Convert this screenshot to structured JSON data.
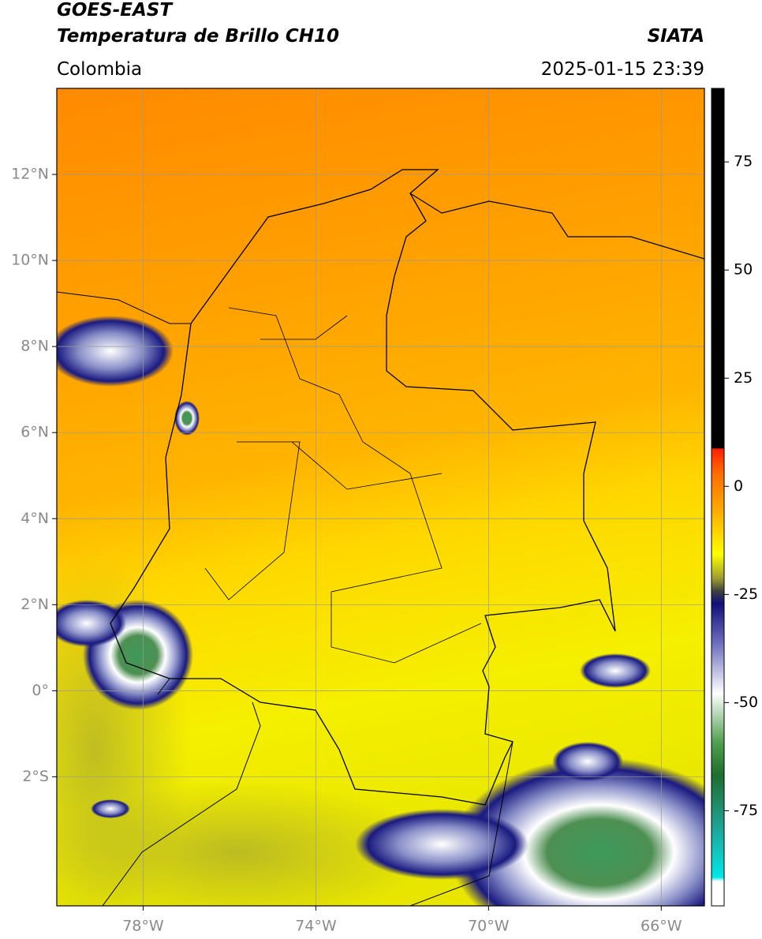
{
  "header": {
    "title": "GOES-EAST",
    "subtitle": "Temperatura de Brillo CH10",
    "source": "SIATA",
    "region": "Colombia",
    "timestamp": "2025-01-15 23:39"
  },
  "map": {
    "type": "map",
    "xlim": [
      -80,
      -65
    ],
    "ylim": [
      -5,
      14
    ],
    "xticks": [
      {
        "value": -78,
        "label": "78°W"
      },
      {
        "value": -74,
        "label": "74°W"
      },
      {
        "value": -70,
        "label": "70°W"
      },
      {
        "value": -66,
        "label": "66°W"
      }
    ],
    "yticks": [
      {
        "value": 12,
        "label": "12°N"
      },
      {
        "value": 10,
        "label": "10°N"
      },
      {
        "value": 8,
        "label": "8°N"
      },
      {
        "value": 6,
        "label": "6°N"
      },
      {
        "value": 4,
        "label": "4°N"
      },
      {
        "value": 2,
        "label": "2°N"
      },
      {
        "value": 0,
        "label": "0°"
      },
      {
        "value": -2,
        "label": "2°S"
      }
    ],
    "grid": true
  },
  "colorbar": {
    "lim": [
      -97,
      92
    ],
    "ticks": [
      75,
      50,
      25,
      0,
      -25,
      -50,
      -75
    ]
  }
}
